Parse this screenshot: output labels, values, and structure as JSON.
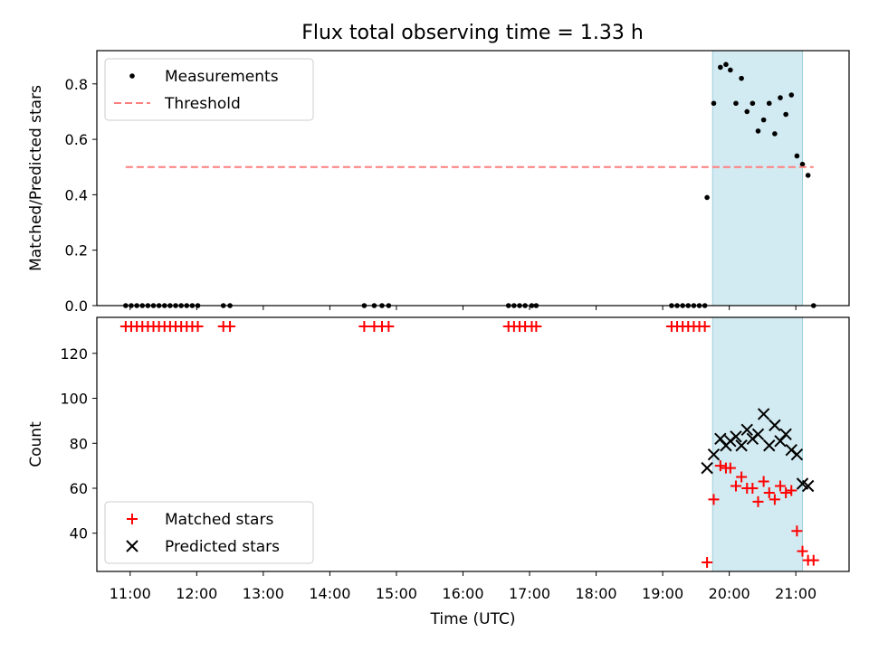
{
  "title": "Flux total observing time = 1.33 h",
  "colors": {
    "measurement": "#000000",
    "threshold": "#ff7f7f",
    "matched": "#ff0000",
    "predicted": "#000000",
    "shade_fill": "#add8e6",
    "shade_edge": "#9fcfdc"
  },
  "chart_data": [
    {
      "type": "scatter",
      "xlabel": "",
      "ylabel": "Matched/Predicted stars",
      "x_unit": "time (UTC, hours)",
      "xlim": [
        "10:30",
        "21:48"
      ],
      "ylim": [
        0,
        0.92
      ],
      "yticks": [
        0.0,
        0.2,
        0.4,
        0.6,
        0.8
      ],
      "ytick_labels": [
        "0.0",
        "0.2",
        "0.4",
        "0.6",
        "0.8"
      ],
      "shaded_interval": [
        "19:45",
        "21:06"
      ],
      "legend": {
        "position": "top-left",
        "entries": [
          {
            "label": "Measurements",
            "marker": "dot"
          },
          {
            "label": "Threshold",
            "marker": "dashed-line"
          }
        ]
      },
      "series": [
        {
          "name": "Measurements",
          "marker": "dot",
          "points": [
            [
              "10:56",
              0.0
            ],
            [
              "11:01",
              0.0
            ],
            [
              "11:06",
              0.0
            ],
            [
              "11:11",
              0.0
            ],
            [
              "11:16",
              0.0
            ],
            [
              "11:21",
              0.0
            ],
            [
              "11:26",
              0.0
            ],
            [
              "11:31",
              0.0
            ],
            [
              "11:36",
              0.0
            ],
            [
              "11:41",
              0.0
            ],
            [
              "11:46",
              0.0
            ],
            [
              "11:51",
              0.0
            ],
            [
              "11:56",
              0.0
            ],
            [
              "12:01",
              0.0
            ],
            [
              "12:24",
              0.0
            ],
            [
              "12:30",
              0.0
            ],
            [
              "14:31",
              0.0
            ],
            [
              "14:40",
              0.0
            ],
            [
              "14:47",
              0.0
            ],
            [
              "14:53",
              0.0
            ],
            [
              "16:41",
              0.0
            ],
            [
              "16:46",
              0.0
            ],
            [
              "16:51",
              0.0
            ],
            [
              "16:56",
              0.0
            ],
            [
              "17:02",
              0.0
            ],
            [
              "17:06",
              0.0
            ],
            [
              "19:08",
              0.0
            ],
            [
              "19:13",
              0.0
            ],
            [
              "19:18",
              0.0
            ],
            [
              "19:23",
              0.0
            ],
            [
              "19:28",
              0.0
            ],
            [
              "19:33",
              0.0
            ],
            [
              "19:38",
              0.0
            ],
            [
              "19:40",
              0.39
            ],
            [
              "19:46",
              0.73
            ],
            [
              "19:52",
              0.86
            ],
            [
              "19:57",
              0.87
            ],
            [
              "20:01",
              0.85
            ],
            [
              "20:06",
              0.73
            ],
            [
              "20:11",
              0.82
            ],
            [
              "20:16",
              0.7
            ],
            [
              "20:21",
              0.73
            ],
            [
              "20:26",
              0.63
            ],
            [
              "20:31",
              0.67
            ],
            [
              "20:36",
              0.73
            ],
            [
              "20:41",
              0.62
            ],
            [
              "20:46",
              0.75
            ],
            [
              "20:51",
              0.69
            ],
            [
              "20:56",
              0.76
            ],
            [
              "21:01",
              0.54
            ],
            [
              "21:06",
              0.51
            ],
            [
              "21:11",
              0.47
            ],
            [
              "21:16",
              0.0
            ]
          ]
        },
        {
          "name": "Threshold",
          "marker": "dashed-line",
          "points": [
            [
              "10:56",
              0.5
            ],
            [
              "21:16",
              0.5
            ]
          ]
        }
      ]
    },
    {
      "type": "scatter",
      "xlabel": "Time (UTC)",
      "ylabel": "Count",
      "xlim": [
        "10:30",
        "21:48"
      ],
      "ylim": [
        23,
        136
      ],
      "yticks": [
        40,
        60,
        80,
        100,
        120
      ],
      "ytick_labels": [
        "40",
        "60",
        "80",
        "100",
        "120"
      ],
      "xtick_labels": [
        "11:00",
        "12:00",
        "13:00",
        "14:00",
        "15:00",
        "16:00",
        "17:00",
        "18:00",
        "19:00",
        "20:00",
        "21:00"
      ],
      "shaded_interval": [
        "19:45",
        "21:06"
      ],
      "legend": {
        "position": "bottom-left",
        "entries": [
          {
            "label": "Matched stars",
            "marker": "plus"
          },
          {
            "label": "Predicted stars",
            "marker": "cross"
          }
        ]
      },
      "series": [
        {
          "name": "Matched stars",
          "marker": "plus",
          "points": [
            [
              "10:56",
              132
            ],
            [
              "11:01",
              132
            ],
            [
              "11:06",
              132
            ],
            [
              "11:11",
              132
            ],
            [
              "11:16",
              132
            ],
            [
              "11:21",
              132
            ],
            [
              "11:26",
              132
            ],
            [
              "11:31",
              132
            ],
            [
              "11:36",
              132
            ],
            [
              "11:41",
              132
            ],
            [
              "11:46",
              132
            ],
            [
              "11:51",
              132
            ],
            [
              "11:56",
              132
            ],
            [
              "12:01",
              132
            ],
            [
              "12:24",
              132
            ],
            [
              "12:30",
              132
            ],
            [
              "14:31",
              132
            ],
            [
              "14:40",
              132
            ],
            [
              "14:47",
              132
            ],
            [
              "14:53",
              132
            ],
            [
              "16:41",
              132
            ],
            [
              "16:46",
              132
            ],
            [
              "16:51",
              132
            ],
            [
              "16:56",
              132
            ],
            [
              "17:02",
              132
            ],
            [
              "17:06",
              132
            ],
            [
              "19:08",
              132
            ],
            [
              "19:13",
              132
            ],
            [
              "19:18",
              132
            ],
            [
              "19:23",
              132
            ],
            [
              "19:28",
              132
            ],
            [
              "19:33",
              132
            ],
            [
              "19:38",
              132
            ],
            [
              "19:40",
              27
            ],
            [
              "19:46",
              55
            ],
            [
              "19:52",
              70
            ],
            [
              "19:57",
              69
            ],
            [
              "20:01",
              69
            ],
            [
              "20:06",
              61
            ],
            [
              "20:11",
              65
            ],
            [
              "20:16",
              60
            ],
            [
              "20:21",
              60
            ],
            [
              "20:26",
              54
            ],
            [
              "20:31",
              63
            ],
            [
              "20:36",
              58
            ],
            [
              "20:41",
              55
            ],
            [
              "20:46",
              61
            ],
            [
              "20:51",
              58
            ],
            [
              "20:56",
              59
            ],
            [
              "21:01",
              41
            ],
            [
              "21:06",
              32
            ],
            [
              "21:11",
              28
            ],
            [
              "21:16",
              28
            ]
          ]
        },
        {
          "name": "Predicted stars",
          "marker": "cross",
          "points": [
            [
              "19:40",
              69
            ],
            [
              "19:46",
              75
            ],
            [
              "19:52",
              82
            ],
            [
              "19:57",
              79
            ],
            [
              "20:01",
              81
            ],
            [
              "20:06",
              83
            ],
            [
              "20:11",
              79
            ],
            [
              "20:16",
              86
            ],
            [
              "20:21",
              82
            ],
            [
              "20:26",
              84
            ],
            [
              "20:31",
              93
            ],
            [
              "20:36",
              79
            ],
            [
              "20:41",
              88
            ],
            [
              "20:46",
              81
            ],
            [
              "20:51",
              84
            ],
            [
              "20:56",
              77
            ],
            [
              "21:01",
              75
            ],
            [
              "21:06",
              62
            ],
            [
              "21:11",
              61
            ]
          ]
        }
      ]
    }
  ]
}
